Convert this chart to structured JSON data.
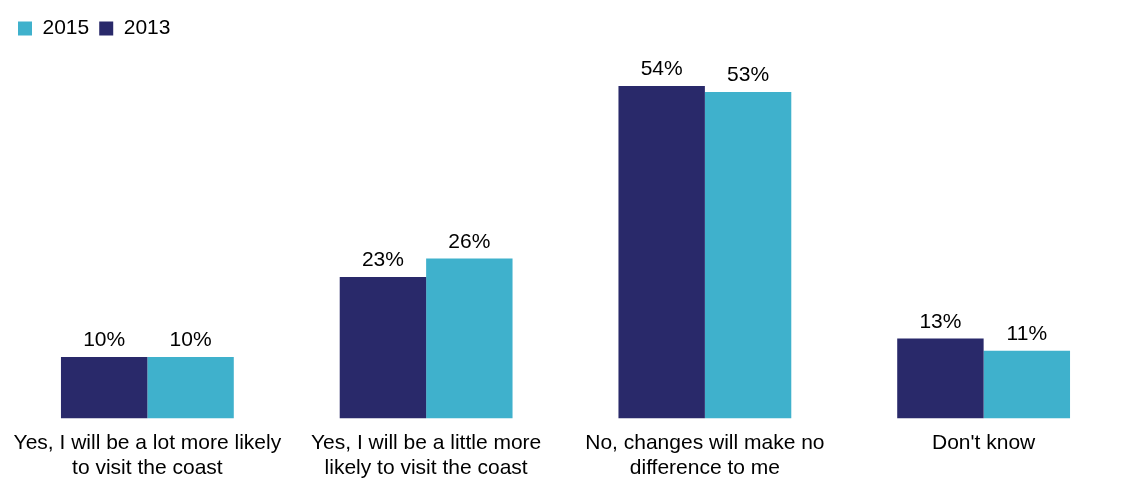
{
  "chart_data": {
    "type": "bar",
    "categories": [
      "Yes, I will be a lot more likely to visit the coast",
      "Yes, I will be a little more likely to visit the coast",
      "No, changes will make no difference to me",
      "Don't know"
    ],
    "series": [
      {
        "name": "2013",
        "color": "#29296a",
        "values": [
          10,
          23,
          54,
          13
        ],
        "value_labels": [
          "10%",
          "23%",
          "54%",
          "13%"
        ]
      },
      {
        "name": "2015",
        "color": "#3fb1cc",
        "values": [
          10,
          26,
          53,
          11
        ],
        "value_labels": [
          "10%",
          "26%",
          "53%",
          "11%"
        ]
      }
    ],
    "legend": "top left",
    "grid": false,
    "tick_labels": "x"
  }
}
